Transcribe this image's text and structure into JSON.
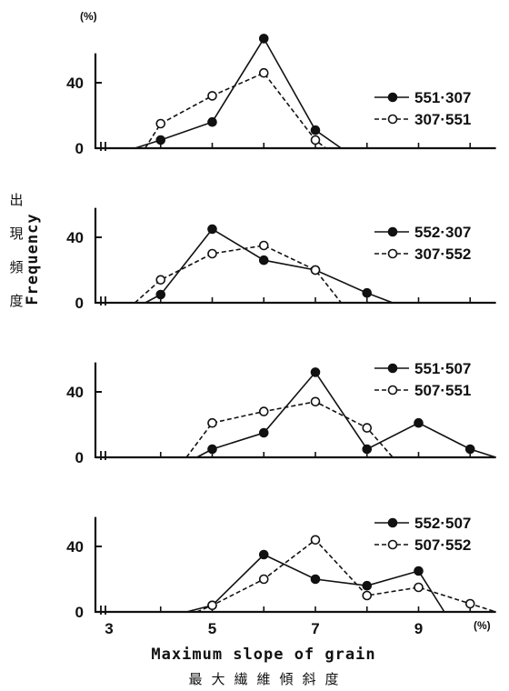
{
  "chart_data": {
    "type": "line",
    "xlabel": "Maximum slope of grain",
    "xlabel_ja": "最大繊維傾斜度",
    "x_unit": "(%)",
    "ylabel": "Frequency",
    "ylabel_ja": "出現頻度",
    "y_unit": "(%)",
    "xlim": [
      3,
      10.5
    ],
    "ylim": [
      0,
      60
    ],
    "x_ticks": [
      3,
      5,
      7,
      9
    ],
    "y_ticks": [
      0,
      40
    ],
    "panels": [
      {
        "series": [
          {
            "name": "551·307",
            "marker": "filled",
            "line": "solid",
            "x": [
              3.5,
              4,
              5,
              6,
              7,
              7.5
            ],
            "y": [
              0,
              5,
              16,
              67,
              11,
              0
            ]
          },
          {
            "name": "307·551",
            "marker": "open",
            "line": "dashed",
            "x": [
              3.7,
              4,
              5,
              6,
              7,
              7.2
            ],
            "y": [
              0,
              15,
              32,
              46,
              5,
              0
            ]
          }
        ]
      },
      {
        "series": [
          {
            "name": "552·307",
            "marker": "filled",
            "line": "solid",
            "x": [
              3.7,
              4,
              5,
              6,
              7,
              8,
              8.5
            ],
            "y": [
              0,
              5,
              45,
              26,
              20,
              6,
              0
            ]
          },
          {
            "name": "307·552",
            "marker": "open",
            "line": "dashed",
            "x": [
              3.5,
              4,
              5,
              6,
              7,
              7.5
            ],
            "y": [
              0,
              14,
              30,
              35,
              20,
              0
            ]
          }
        ]
      },
      {
        "series": [
          {
            "name": "551·507",
            "marker": "filled",
            "line": "solid",
            "x": [
              4.7,
              5,
              6,
              7,
              8,
              9,
              10,
              10.5
            ],
            "y": [
              0,
              5,
              15,
              52,
              5,
              21,
              5,
              0
            ]
          },
          {
            "name": "507·551",
            "marker": "open",
            "line": "dashed",
            "x": [
              4.5,
              5,
              6,
              7,
              8,
              8.5
            ],
            "y": [
              0,
              21,
              28,
              34,
              18,
              0
            ]
          }
        ]
      },
      {
        "series": [
          {
            "name": "552·507",
            "marker": "filled",
            "line": "solid",
            "x": [
              4.5,
              5,
              6,
              7,
              8,
              9,
              9.5
            ],
            "y": [
              0,
              4,
              35,
              20,
              16,
              25,
              0
            ]
          },
          {
            "name": "507·552",
            "marker": "open",
            "line": "dashed",
            "x": [
              4.7,
              5,
              6,
              7,
              8,
              9,
              10,
              10.5
            ],
            "y": [
              0,
              4,
              20,
              44,
              10,
              15,
              5,
              0
            ]
          }
        ]
      }
    ]
  }
}
